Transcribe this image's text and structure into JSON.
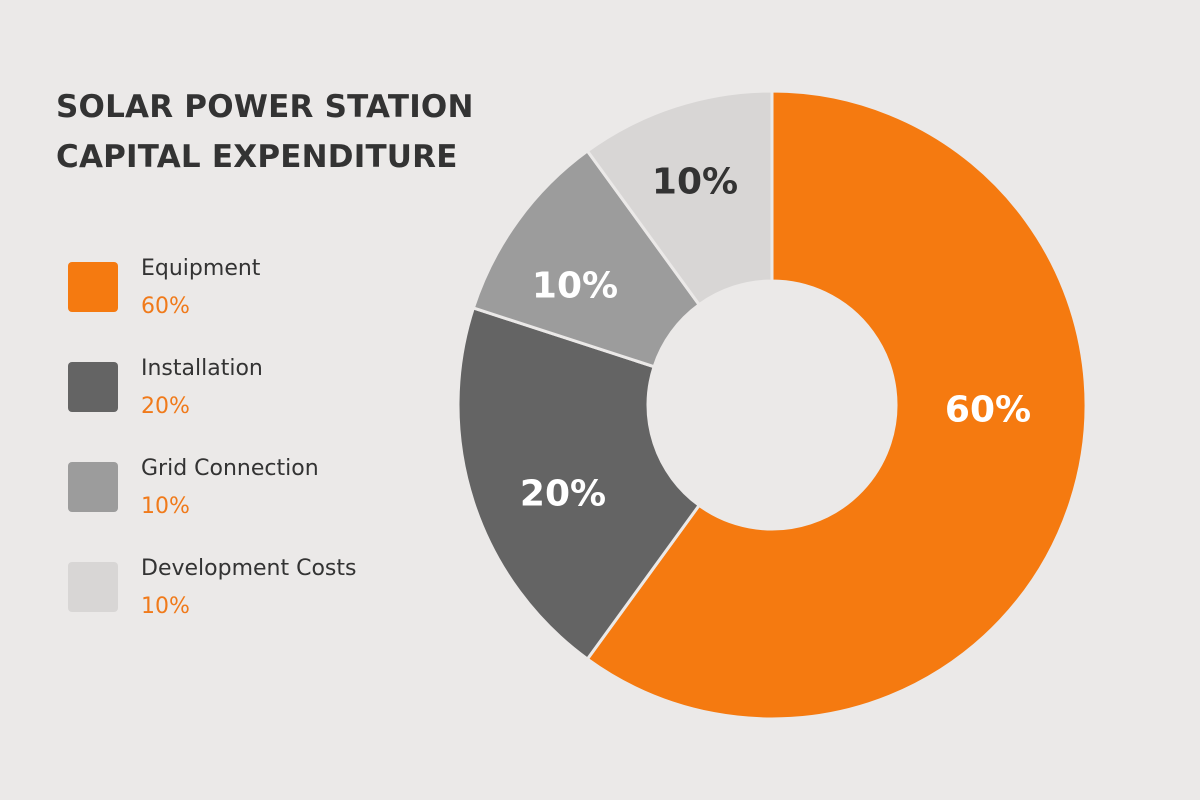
{
  "chart_data": {
    "type": "pie",
    "variant": "donut",
    "title_lines": [
      "SOLAR POWER STATION",
      "CAPITAL EXPENDITURE"
    ],
    "slices": [
      {
        "label": "Equipment",
        "value": 60,
        "display": "60%",
        "color": "#f57a10",
        "text_color": "#ffffff"
      },
      {
        "label": "Installation",
        "value": 20,
        "display": "20%",
        "color": "#646464",
        "text_color": "#ffffff"
      },
      {
        "label": "Grid Connection",
        "value": 10,
        "display": "10%",
        "color": "#9c9c9c",
        "text_color": "#ffffff"
      },
      {
        "label": "Development Costs",
        "value": 10,
        "display": "10%",
        "color": "#d8d6d5",
        "text_color": "#333333"
      }
    ],
    "legend_position": "left"
  }
}
